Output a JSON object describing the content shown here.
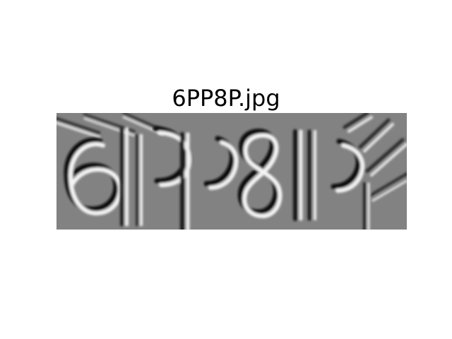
{
  "figure": {
    "title": "6PP8P.jpg"
  },
  "image": {
    "name": "captcha-image",
    "captcha_text": "6PP8P",
    "base_gray": "#808080"
  }
}
